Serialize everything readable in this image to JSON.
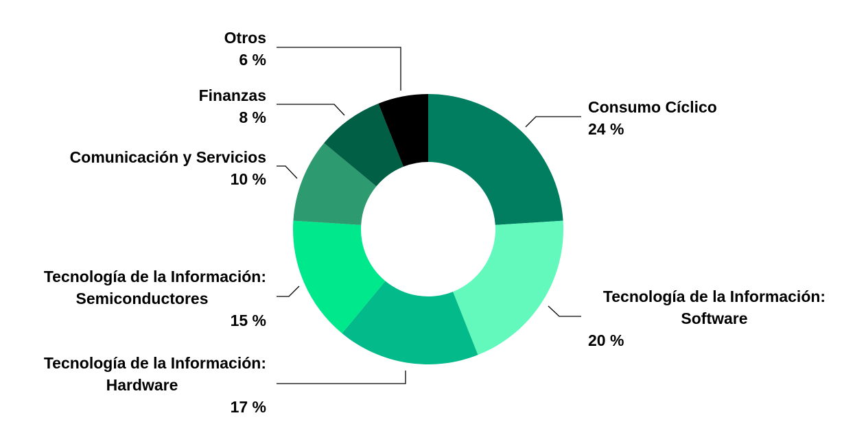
{
  "chart_data": {
    "type": "donut",
    "unit": "%",
    "slices": [
      {
        "name": "Consumo Cíclico",
        "value": 24,
        "value_label": "24 %",
        "color": "#017D5F"
      },
      {
        "name": "Tecnología de la Información: Software",
        "name_lines": [
          "Tecnología de la Información:",
          "Software"
        ],
        "value": 20,
        "value_label": "20 %",
        "color": "#63F9BD"
      },
      {
        "name": "Tecnología de la Información: Hardware",
        "name_lines": [
          "Tecnología de la Información:",
          "Hardware"
        ],
        "value": 17,
        "value_label": "17 %",
        "color": "#03BA8A"
      },
      {
        "name": "Tecnología de la Información: Semiconductores",
        "name_lines": [
          "Tecnología de la Información:",
          "Semiconductores"
        ],
        "value": 15,
        "value_label": "15 %",
        "color": "#00E88C"
      },
      {
        "name": "Comunicación y Servicios",
        "value": 10,
        "value_label": "10 %",
        "color": "#2D9A70"
      },
      {
        "name": "Finanzas",
        "value": 8,
        "value_label": "8 %",
        "color": "#005F45"
      },
      {
        "name": "Otros",
        "value": 6,
        "value_label": "6 %",
        "color": "#000000"
      }
    ]
  }
}
